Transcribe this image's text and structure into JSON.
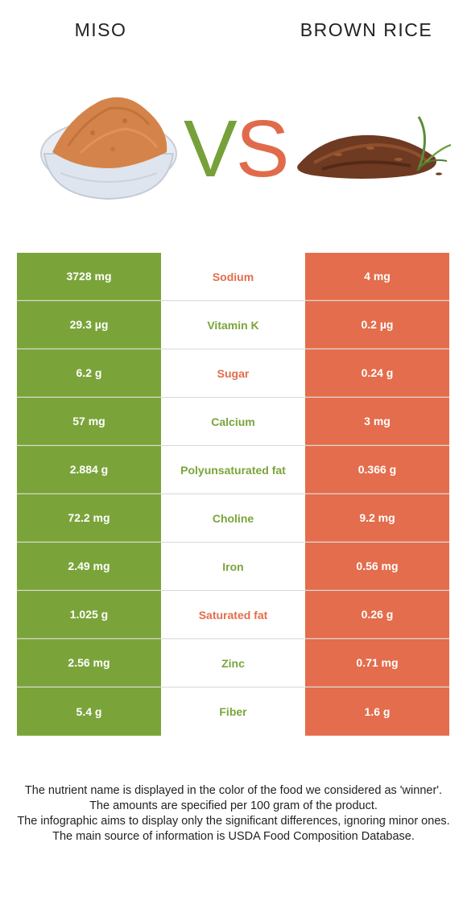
{
  "header": {
    "left_food": "MISO",
    "right_food": "BROWN RICE",
    "vs_v": "V",
    "vs_s": "S"
  },
  "colors": {
    "miso_green": "#7aa43a",
    "rice_orange": "#e36d4c"
  },
  "rows": [
    {
      "left": "3728 mg",
      "nutrient": "Sodium",
      "right": "4 mg",
      "winner": "right"
    },
    {
      "left": "29.3 µg",
      "nutrient": "Vitamin K",
      "right": "0.2 µg",
      "winner": "left"
    },
    {
      "left": "6.2 g",
      "nutrient": "Sugar",
      "right": "0.24 g",
      "winner": "right"
    },
    {
      "left": "57 mg",
      "nutrient": "Calcium",
      "right": "3 mg",
      "winner": "left"
    },
    {
      "left": "2.884 g",
      "nutrient": "Polyunsaturated fat",
      "right": "0.366 g",
      "winner": "left"
    },
    {
      "left": "72.2 mg",
      "nutrient": "Choline",
      "right": "9.2 mg",
      "winner": "left"
    },
    {
      "left": "2.49 mg",
      "nutrient": "Iron",
      "right": "0.56 mg",
      "winner": "left"
    },
    {
      "left": "1.025 g",
      "nutrient": "Saturated fat",
      "right": "0.26 g",
      "winner": "right"
    },
    {
      "left": "2.56 mg",
      "nutrient": "Zinc",
      "right": "0.71 mg",
      "winner": "left"
    },
    {
      "left": "5.4 g",
      "nutrient": "Fiber",
      "right": "1.6 g",
      "winner": "left"
    }
  ],
  "footer": {
    "line1": "The nutrient name is displayed in the color of the food we considered as 'winner'.",
    "line2": "The amounts are specified per 100 gram of the product.",
    "line3": "The infographic aims to display only the significant differences, ignoring minor ones.",
    "line4": "The main source of information is USDA Food Composition Database."
  }
}
